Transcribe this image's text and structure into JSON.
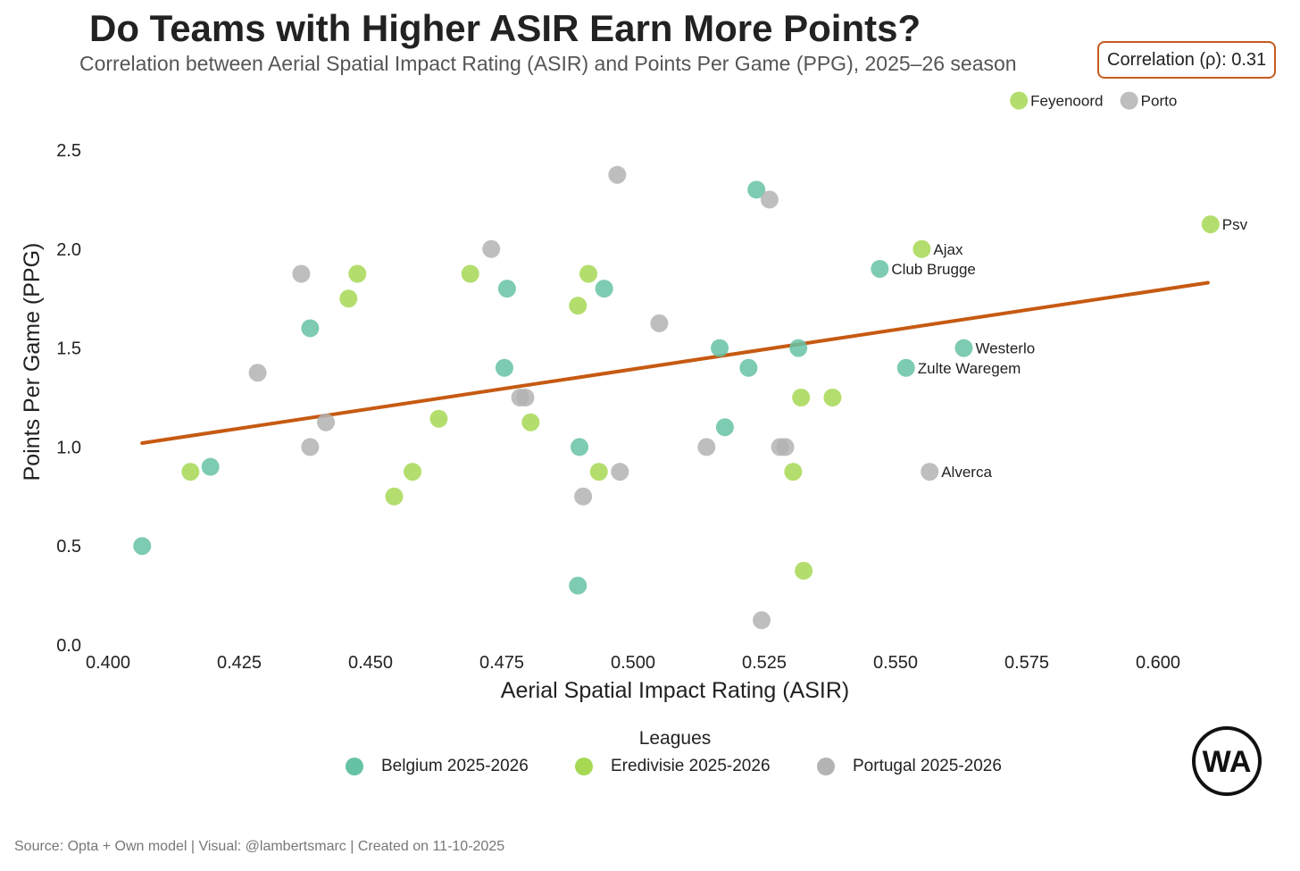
{
  "header": {
    "title": "Do Teams with Higher ASIR Earn More Points?",
    "subtitle": "Correlation between Aerial Spatial Impact Rating (ASIR) and Points Per Game (PPG), 2025–26 season",
    "correlation_label": "Correlation (ρ): 0.31"
  },
  "colors": {
    "belgium": "#66c2a5",
    "eredivisie": "#a6d854",
    "portugal": "#b3b3b3",
    "trend": "#c65a12",
    "corr_border": "#c65a1e"
  },
  "legend": {
    "title": "Leagues",
    "items": [
      {
        "label": "Belgium 2025-2026",
        "color": "#66c2a5"
      },
      {
        "label": "Eredivisie 2025-2026",
        "color": "#a6d854"
      },
      {
        "label": "Portugal 2025-2026",
        "color": "#b3b3b3"
      }
    ]
  },
  "footer": "Source: Opta + Own model | Visual: @lambertsmarc | Created on 11-10-2025",
  "logo": {
    "text": "WA"
  },
  "chart_data": {
    "type": "scatter",
    "title": "Do Teams with Higher ASIR Earn More Points?",
    "xlabel": "Aerial Spatial Impact Rating (ASIR)",
    "ylabel": "Points Per Game (PPG)",
    "xlim": [
      0.397,
      0.621
    ],
    "ylim": [
      0.0,
      2.6
    ],
    "xticks": [
      0.4,
      0.425,
      0.45,
      0.475,
      0.5,
      0.525,
      0.55,
      0.575,
      0.6
    ],
    "xtick_labels": [
      "0.400",
      "0.425",
      "0.450",
      "0.475",
      "0.500",
      "0.525",
      "0.550",
      "0.575",
      "0.600"
    ],
    "yticks": [
      0.0,
      0.5,
      1.0,
      1.5,
      2.0,
      2.5
    ],
    "ytick_labels": [
      "0.0",
      "0.5",
      "1.0",
      "1.5",
      "2.0",
      "2.5"
    ],
    "grid": false,
    "trendline": {
      "x": [
        0.4065,
        0.6095
      ],
      "y": [
        1.02,
        1.83
      ]
    },
    "series": [
      {
        "name": "Belgium 2025-2026",
        "color": "#66c2a5",
        "points": [
          {
            "x": 0.4065,
            "y": 0.5
          },
          {
            "x": 0.4195,
            "y": 0.9
          },
          {
            "x": 0.4385,
            "y": 1.6
          },
          {
            "x": 0.4755,
            "y": 1.4
          },
          {
            "x": 0.476,
            "y": 1.8
          },
          {
            "x": 0.4895,
            "y": 0.3
          },
          {
            "x": 0.4898,
            "y": 1.0
          },
          {
            "x": 0.4945,
            "y": 1.8
          },
          {
            "x": 0.5165,
            "y": 1.5
          },
          {
            "x": 0.5175,
            "y": 1.1
          },
          {
            "x": 0.522,
            "y": 1.4
          },
          {
            "x": 0.5235,
            "y": 2.3
          },
          {
            "x": 0.5315,
            "y": 1.5
          },
          {
            "x": 0.547,
            "y": 1.9,
            "label": "Club Brugge"
          },
          {
            "x": 0.552,
            "y": 1.4,
            "label": "Zulte Waregem"
          },
          {
            "x": 0.563,
            "y": 1.5,
            "label": "Westerlo"
          }
        ]
      },
      {
        "name": "Eredivisie 2025-2026",
        "color": "#a6d854",
        "points": [
          {
            "x": 0.4157,
            "y": 0.875
          },
          {
            "x": 0.4458,
            "y": 1.75
          },
          {
            "x": 0.4475,
            "y": 1.875
          },
          {
            "x": 0.4545,
            "y": 0.75
          },
          {
            "x": 0.458,
            "y": 0.875
          },
          {
            "x": 0.463,
            "y": 1.143
          },
          {
            "x": 0.469,
            "y": 1.875
          },
          {
            "x": 0.4805,
            "y": 1.125
          },
          {
            "x": 0.4895,
            "y": 1.714
          },
          {
            "x": 0.4915,
            "y": 1.875
          },
          {
            "x": 0.4935,
            "y": 0.875
          },
          {
            "x": 0.5305,
            "y": 0.875
          },
          {
            "x": 0.532,
            "y": 1.25
          },
          {
            "x": 0.5325,
            "y": 0.375
          },
          {
            "x": 0.538,
            "y": 1.25
          },
          {
            "x": 0.555,
            "y": 2.0,
            "label": "Ajax"
          },
          {
            "x": 0.61,
            "y": 2.125,
            "label": "Psv"
          },
          {
            "x": 0.5735,
            "y": 2.75,
            "label": "Feyenoord"
          }
        ]
      },
      {
        "name": "Portugal 2025-2026",
        "color": "#b3b3b3",
        "points": [
          {
            "x": 0.4285,
            "y": 1.375
          },
          {
            "x": 0.4368,
            "y": 1.875
          },
          {
            "x": 0.4385,
            "y": 1.0
          },
          {
            "x": 0.4415,
            "y": 1.125
          },
          {
            "x": 0.473,
            "y": 2.0
          },
          {
            "x": 0.4785,
            "y": 1.25
          },
          {
            "x": 0.4795,
            "y": 1.25
          },
          {
            "x": 0.4905,
            "y": 0.75
          },
          {
            "x": 0.497,
            "y": 2.375
          },
          {
            "x": 0.4975,
            "y": 0.875
          },
          {
            "x": 0.505,
            "y": 1.625
          },
          {
            "x": 0.514,
            "y": 1.0
          },
          {
            "x": 0.5245,
            "y": 0.125
          },
          {
            "x": 0.526,
            "y": 2.25
          },
          {
            "x": 0.528,
            "y": 1.0
          },
          {
            "x": 0.529,
            "y": 1.0
          },
          {
            "x": 0.5565,
            "y": 0.875,
            "label": "Alverca"
          },
          {
            "x": 0.5945,
            "y": 2.75,
            "label": "Porto"
          }
        ]
      }
    ]
  }
}
